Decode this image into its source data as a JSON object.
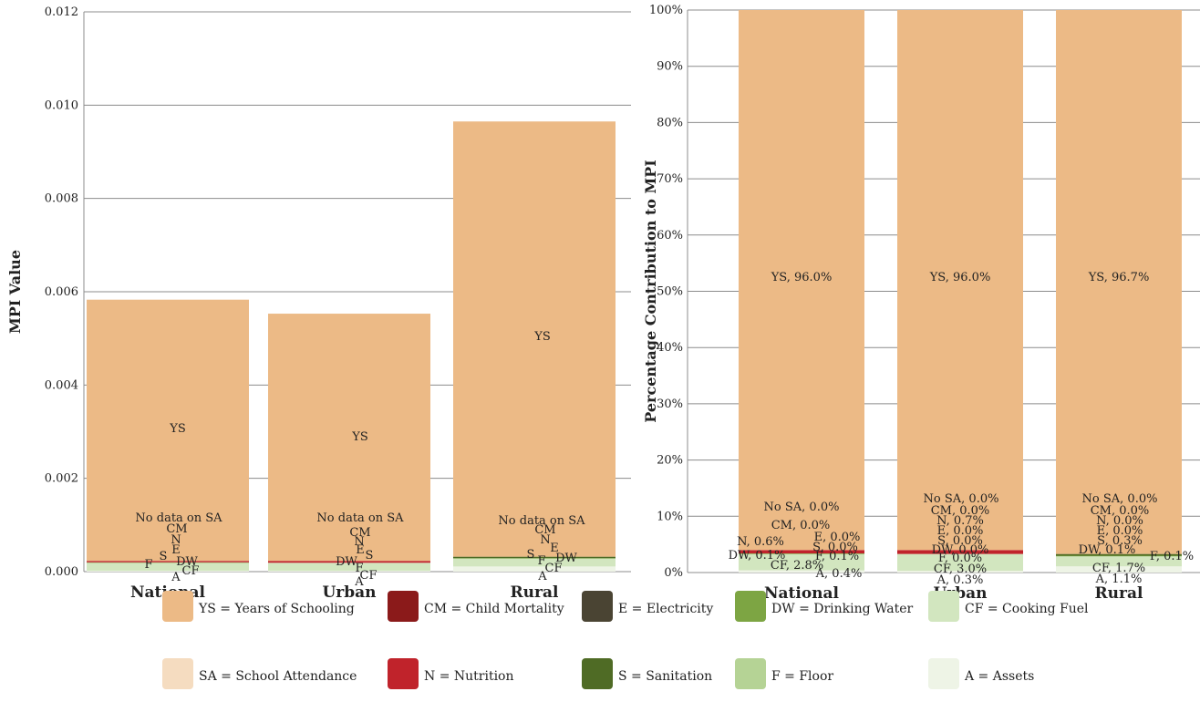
{
  "components": [
    {
      "code": "YS",
      "legend": "YS = Years of Schooling",
      "color": "#ecba86"
    },
    {
      "code": "SA",
      "legend": "SA = School Attendance",
      "color": "#f5dcc0"
    },
    {
      "code": "CM",
      "legend": "CM = Child Mortality",
      "color": "#8b1a1a"
    },
    {
      "code": "N",
      "legend": "N = Nutrition",
      "color": "#c0232b"
    },
    {
      "code": "E",
      "legend": "E = Electricity",
      "color": "#4a4433"
    },
    {
      "code": "S",
      "legend": "S = Sanitation",
      "color": "#4f6b25"
    },
    {
      "code": "DW",
      "legend": "DW = Drinking Water",
      "color": "#7da543"
    },
    {
      "code": "F",
      "legend": "F = Floor",
      "color": "#b5d395"
    },
    {
      "code": "CF",
      "legend": "CF = Cooking Fuel",
      "color": "#d2e6bf"
    },
    {
      "code": "A",
      "legend": "A = Assets",
      "color": "#eef4e6"
    }
  ],
  "chart_data": [
    {
      "type": "bar",
      "stacked": true,
      "ylabel": "MPI Value",
      "ylim": [
        0,
        0.012
      ],
      "yticks": [
        "0.000",
        "0.002",
        "0.004",
        "0.006",
        "0.008",
        "0.010",
        "0.012"
      ],
      "grid": true,
      "categories": [
        "National",
        "Urban",
        "Rural"
      ],
      "series": [
        {
          "name": "A",
          "values": [
            2e-05,
            2e-05,
            0.00011
          ]
        },
        {
          "name": "CF",
          "values": [
            0.00016,
            0.00017,
            0.00016
          ]
        },
        {
          "name": "F",
          "values": [
            1e-05,
            0.0,
            1e-05
          ]
        },
        {
          "name": "DW",
          "values": [
            1e-05,
            0.0,
            1e-05
          ]
        },
        {
          "name": "S",
          "values": [
            0.0,
            0.0,
            3e-05
          ]
        },
        {
          "name": "E",
          "values": [
            0.0,
            0.0,
            0.0
          ]
        },
        {
          "name": "N",
          "values": [
            3e-05,
            4e-05,
            0.0
          ]
        },
        {
          "name": "CM",
          "values": [
            0.0,
            0.0,
            0.0
          ]
        },
        {
          "name": "SA",
          "values": [
            0.0,
            0.0,
            0.0
          ]
        },
        {
          "name": "YS",
          "values": [
            0.0056,
            0.0053,
            0.00933
          ]
        }
      ],
      "labels": [
        {
          "category": "National",
          "text": "YS"
        },
        {
          "category": "National",
          "text": "No data on SA"
        },
        {
          "category": "National",
          "text": "CM"
        },
        {
          "category": "National",
          "text": "N"
        },
        {
          "category": "National",
          "text": "E"
        },
        {
          "category": "National",
          "text": "S"
        },
        {
          "category": "National",
          "text": "DW"
        },
        {
          "category": "National",
          "text": "F"
        },
        {
          "category": "National",
          "text": "CF"
        },
        {
          "category": "National",
          "text": "A"
        },
        {
          "category": "Urban",
          "text": "YS"
        },
        {
          "category": "Urban",
          "text": "No data on SA"
        },
        {
          "category": "Urban",
          "text": "CM"
        },
        {
          "category": "Urban",
          "text": "N"
        },
        {
          "category": "Urban",
          "text": "E"
        },
        {
          "category": "Urban",
          "text": "S"
        },
        {
          "category": "Urban",
          "text": "DW"
        },
        {
          "category": "Urban",
          "text": "F"
        },
        {
          "category": "Urban",
          "text": "CF"
        },
        {
          "category": "Urban",
          "text": "A"
        },
        {
          "category": "Rural",
          "text": "YS"
        },
        {
          "category": "Rural",
          "text": "No data on SA"
        },
        {
          "category": "Rural",
          "text": "CM"
        },
        {
          "category": "Rural",
          "text": "N"
        },
        {
          "category": "Rural",
          "text": "E"
        },
        {
          "category": "Rural",
          "text": "S"
        },
        {
          "category": "Rural",
          "text": "F"
        },
        {
          "category": "Rural",
          "text": "DW"
        },
        {
          "category": "Rural",
          "text": "CF"
        },
        {
          "category": "Rural",
          "text": "A"
        }
      ]
    },
    {
      "type": "bar",
      "stacked": true,
      "ylabel": "Percentage Contribution to MPI",
      "ylim": [
        0,
        100
      ],
      "yticks": [
        "0%",
        "10%",
        "20%",
        "30%",
        "40%",
        "50%",
        "60%",
        "70%",
        "80%",
        "90%",
        "100%"
      ],
      "grid": true,
      "categories": [
        "National",
        "Urban",
        "Rural"
      ],
      "series": [
        {
          "name": "A",
          "values": [
            0.4,
            0.3,
            1.1
          ]
        },
        {
          "name": "CF",
          "values": [
            2.8,
            3.0,
            1.7
          ]
        },
        {
          "name": "F",
          "values": [
            0.1,
            0.0,
            0.1
          ]
        },
        {
          "name": "DW",
          "values": [
            0.1,
            0.0,
            0.1
          ]
        },
        {
          "name": "S",
          "values": [
            0.0,
            0.0,
            0.3
          ]
        },
        {
          "name": "E",
          "values": [
            0.0,
            0.0,
            0.0
          ]
        },
        {
          "name": "N",
          "values": [
            0.6,
            0.7,
            0.0
          ]
        },
        {
          "name": "CM",
          "values": [
            0.0,
            0.0,
            0.0
          ]
        },
        {
          "name": "SA",
          "values": [
            0.0,
            0.0,
            0.0
          ]
        },
        {
          "name": "YS",
          "values": [
            96.0,
            96.0,
            96.7
          ]
        }
      ],
      "labels": [
        {
          "category": "National",
          "text": "YS, 96.0%"
        },
        {
          "category": "National",
          "text": "No SA, 0.0%"
        },
        {
          "category": "National",
          "text": "CM, 0.0%"
        },
        {
          "category": "National",
          "text": "E, 0.0%"
        },
        {
          "category": "National",
          "text": "N, 0.6%"
        },
        {
          "category": "National",
          "text": "S, 0.0%"
        },
        {
          "category": "National",
          "text": "DW, 0.1%"
        },
        {
          "category": "National",
          "text": "F, 0.1%"
        },
        {
          "category": "National",
          "text": "CF, 2.8%"
        },
        {
          "category": "National",
          "text": "A, 0.4%"
        },
        {
          "category": "Urban",
          "text": "YS, 96.0%"
        },
        {
          "category": "Urban",
          "text": "No SA, 0.0%"
        },
        {
          "category": "Urban",
          "text": "CM, 0.0%"
        },
        {
          "category": "Urban",
          "text": "N, 0.7%"
        },
        {
          "category": "Urban",
          "text": "E, 0.0%"
        },
        {
          "category": "Urban",
          "text": "S, 0.0%"
        },
        {
          "category": "Urban",
          "text": "DW, 0.0%"
        },
        {
          "category": "Urban",
          "text": "F, 0.0%"
        },
        {
          "category": "Urban",
          "text": "CF, 3.0%"
        },
        {
          "category": "Urban",
          "text": "A, 0.3%"
        },
        {
          "category": "Rural",
          "text": "YS, 96.7%"
        },
        {
          "category": "Rural",
          "text": "No SA, 0.0%"
        },
        {
          "category": "Rural",
          "text": "CM, 0.0%"
        },
        {
          "category": "Rural",
          "text": "N, 0.0%"
        },
        {
          "category": "Rural",
          "text": "E, 0.0%"
        },
        {
          "category": "Rural",
          "text": "S, 0.3%"
        },
        {
          "category": "Rural",
          "text": "DW, 0.1%"
        },
        {
          "category": "Rural",
          "text": "F, 0.1%"
        },
        {
          "category": "Rural",
          "text": "CF, 1.7%"
        },
        {
          "category": "Rural",
          "text": "A, 1.1%"
        }
      ]
    }
  ]
}
